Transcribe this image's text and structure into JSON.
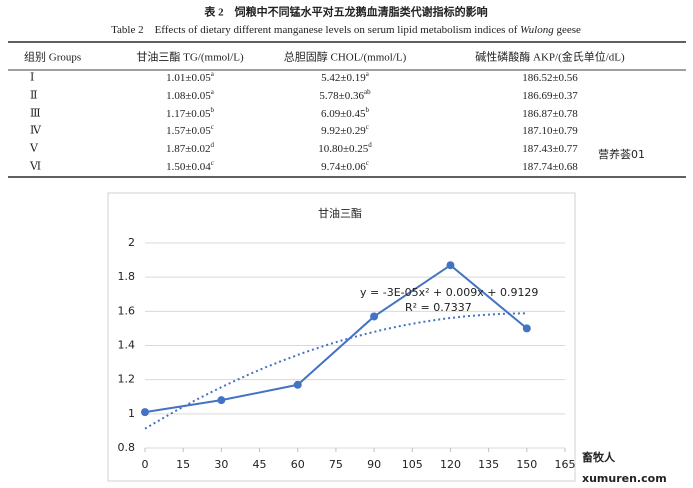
{
  "table": {
    "title_cn": "表 2　饲粮中不同锰水平对五龙鹅血清脂类代谢指标的影响",
    "title_en": "Table 2　Effects of dietary different manganese levels on serum lipid metabolism indices of ",
    "title_en_italic": "Wulong",
    "title_en_tail": " geese",
    "header": [
      "组别 Groups",
      "甘油三酯 TG/(mmol/L)",
      "总胆固醇 CHOL/(mmol/L)",
      "碱性磷酸酶 AKP/(金氏单位/dL)"
    ],
    "rows": [
      [
        "Ⅰ",
        {
          "v": "1.01±0.05",
          "sup": "a"
        },
        {
          "v": "5.42±0.19",
          "sup": "a"
        },
        {
          "v": "186.52±0.56"
        }
      ],
      [
        "Ⅱ",
        {
          "v": "1.08±0.05",
          "sup": "a"
        },
        {
          "v": "5.78±0.36",
          "sup": "ab"
        },
        {
          "v": "186.69±0.37"
        }
      ],
      [
        "Ⅲ",
        {
          "v": "1.17±0.05",
          "sup": "b"
        },
        {
          "v": "6.09±0.45",
          "sup": "b"
        },
        {
          "v": "186.87±0.78"
        }
      ],
      [
        "Ⅳ",
        {
          "v": "1.57±0.05",
          "sup": "c"
        },
        {
          "v": "9.92±0.29",
          "sup": "c"
        },
        {
          "v": "187.10±0.79"
        }
      ],
      [
        "Ⅴ",
        {
          "v": "1.87±0.02",
          "sup": "d"
        },
        {
          "v": "10.80±0.25",
          "sup": "d"
        },
        {
          "v": "187.43±0.77"
        }
      ],
      [
        "Ⅵ",
        {
          "v": "1.50±0.04",
          "sup": "c"
        },
        {
          "v": "9.74±0.06",
          "sup": "c"
        },
        {
          "v": "187.74±0.68"
        }
      ]
    ]
  },
  "chart_data": {
    "type": "line",
    "title": "甘油三酯",
    "x": [
      0,
      30,
      60,
      90,
      120,
      150
    ],
    "values": [
      1.01,
      1.08,
      1.17,
      1.57,
      1.87,
      1.5
    ],
    "color": "#4472c4",
    "xlim": [
      0,
      165
    ],
    "xticks": [
      0,
      15,
      30,
      45,
      60,
      75,
      90,
      105,
      120,
      135,
      150,
      165
    ],
    "ylim": [
      0.8,
      2
    ],
    "yticks": [
      0.8,
      1,
      1.2,
      1.4,
      1.6,
      1.8,
      2
    ],
    "grid": true,
    "trendline": {
      "coefficients": [
        -3e-05,
        0.009,
        0.9129
      ],
      "equation": "y = -3E-05x² + 0.009x + 0.9129",
      "r2": "R² = 0.7337"
    }
  },
  "watermarks": [
    "营养荟01",
    "畜牧人",
    "xumuren.com"
  ]
}
